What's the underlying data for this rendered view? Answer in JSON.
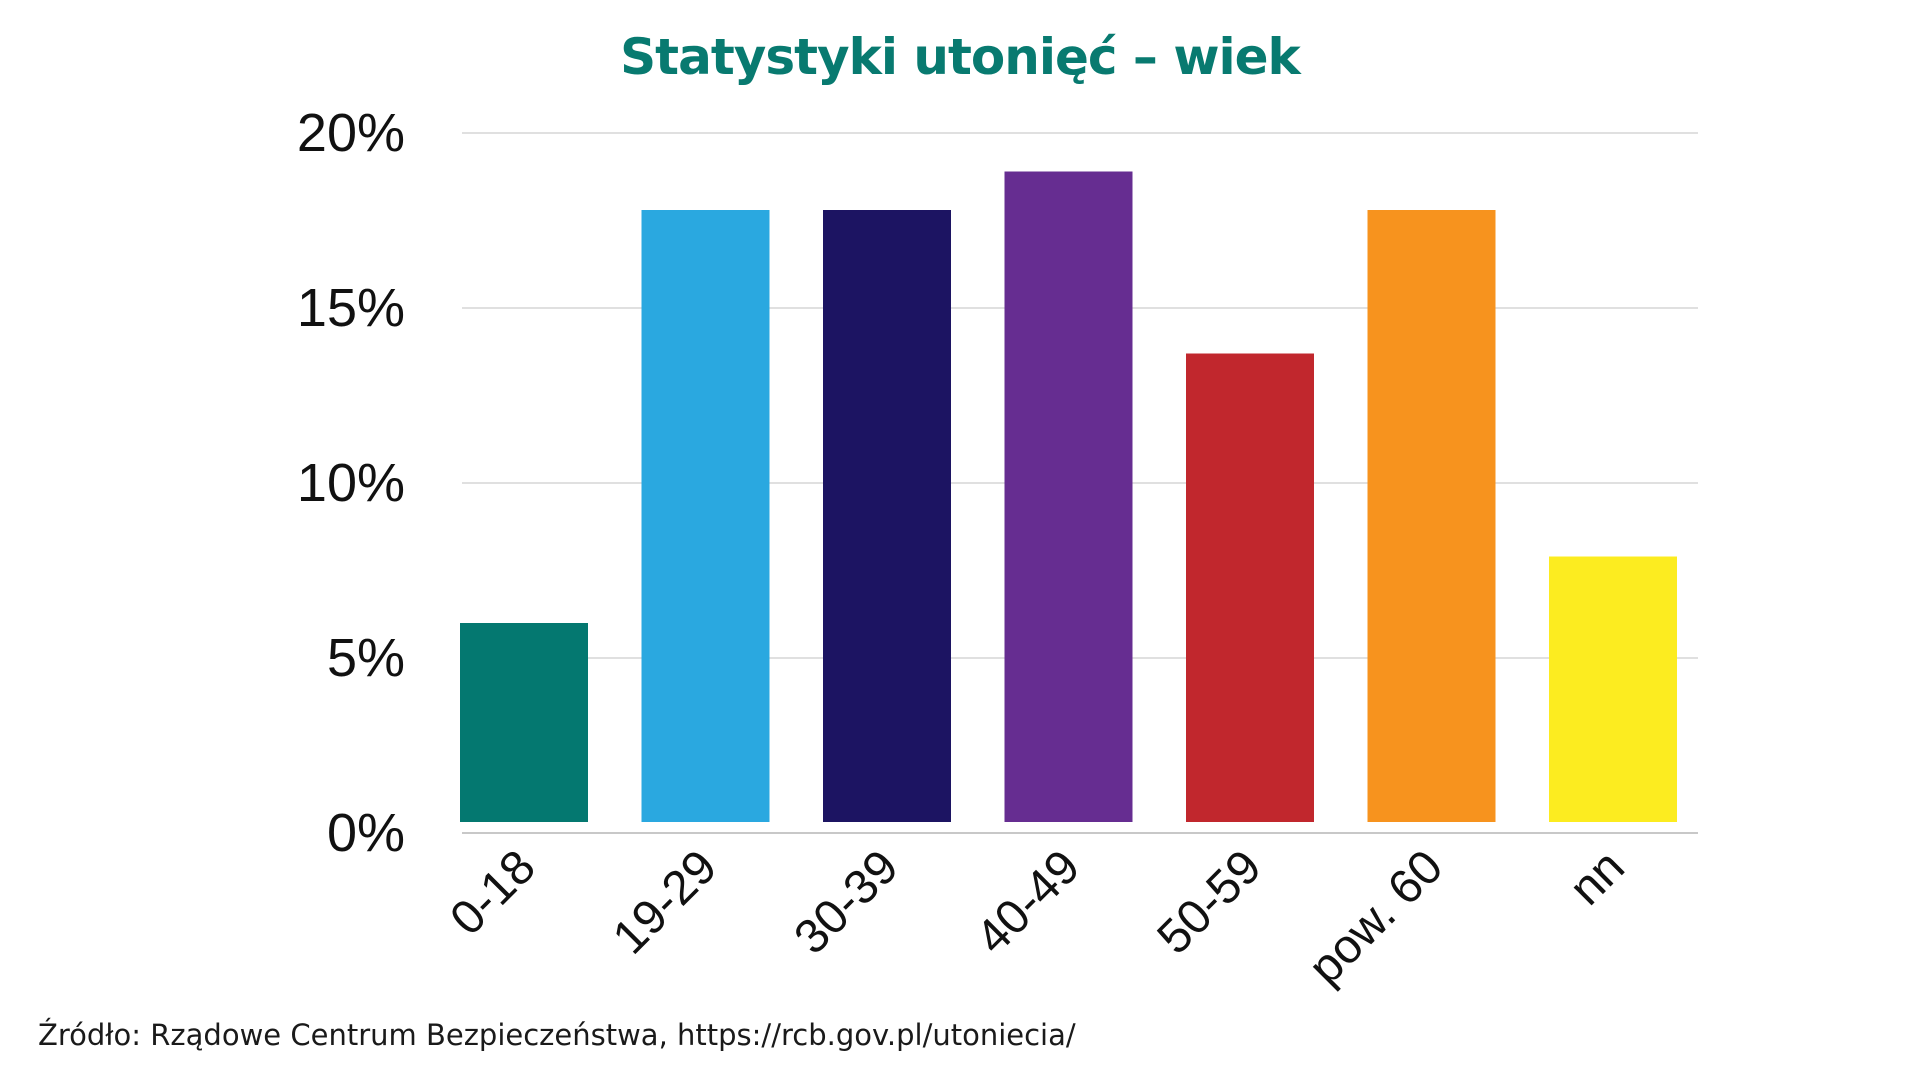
{
  "chart_data": {
    "type": "bar",
    "title": "Statystyki utonięć – wiek",
    "xlabel": "",
    "ylabel": "",
    "categories": [
      "0-18",
      "19-29",
      "30-39",
      "40-49",
      "50-59",
      "pow. 60",
      "nn"
    ],
    "values": [
      6.0,
      17.8,
      17.8,
      18.9,
      13.7,
      17.8,
      7.9
    ],
    "bar_colors": [
      "#047870",
      "#2aa8e0",
      "#1c1462",
      "#662d91",
      "#c1272d",
      "#f7931e",
      "#fcec20"
    ],
    "ylim": [
      0,
      20
    ],
    "yticks": [
      0,
      5,
      10,
      15,
      20
    ],
    "ytick_labels": [
      "0%",
      "5%",
      "10%",
      "15%",
      "20%"
    ],
    "grid": true,
    "legend": "none",
    "title_color": "#087a70"
  },
  "source": "Źródło: Rządowe Centrum Bezpieczeństwa, https://rcb.gov.pl/utoniecia/"
}
